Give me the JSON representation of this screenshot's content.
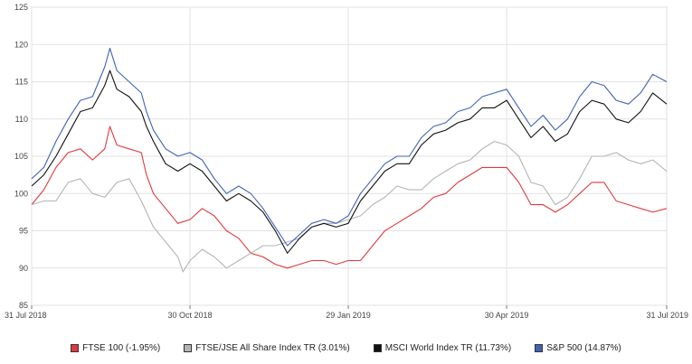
{
  "chart_data": {
    "type": "line",
    "title": "",
    "xlabel": "",
    "ylabel": "",
    "ylim": [
      85,
      125
    ],
    "yticks": [
      85,
      90,
      95,
      100,
      105,
      110,
      115,
      120,
      125
    ],
    "xticks": [
      {
        "label": "31 Jul 2018",
        "date": "2018-07-31"
      },
      {
        "label": "30 Oct 2018",
        "date": "2018-10-30"
      },
      {
        "label": "29 Jan 2019",
        "date": "2019-01-29"
      },
      {
        "label": "30 Apr 2019",
        "date": "2019-04-30"
      },
      {
        "label": "31 Jul 2019",
        "date": "2019-07-31"
      }
    ],
    "xlim": [
      "2018-07-31",
      "2019-07-31"
    ],
    "grid": true,
    "legend_position": "bottom",
    "series": [
      {
        "name": "FTSE 100 (-1.95%)",
        "color": "#e0393e",
        "points": [
          [
            "2018-07-31",
            98.5
          ],
          [
            "2018-08-07",
            100.5
          ],
          [
            "2018-08-14",
            103.5
          ],
          [
            "2018-08-21",
            105.5
          ],
          [
            "2018-08-28",
            106
          ],
          [
            "2018-09-04",
            104.5
          ],
          [
            "2018-09-11",
            106
          ],
          [
            "2018-09-14",
            109
          ],
          [
            "2018-09-18",
            106.5
          ],
          [
            "2018-09-25",
            106
          ],
          [
            "2018-10-02",
            105.5
          ],
          [
            "2018-10-05",
            102.5
          ],
          [
            "2018-10-09",
            100
          ],
          [
            "2018-10-16",
            98
          ],
          [
            "2018-10-23",
            96
          ],
          [
            "2018-10-30",
            96.5
          ],
          [
            "2018-11-06",
            98
          ],
          [
            "2018-11-13",
            97
          ],
          [
            "2018-11-20",
            95
          ],
          [
            "2018-11-27",
            94
          ],
          [
            "2018-12-04",
            92
          ],
          [
            "2018-12-11",
            91.5
          ],
          [
            "2018-12-18",
            90.5
          ],
          [
            "2018-12-25",
            90
          ],
          [
            "2019-01-01",
            90.5
          ],
          [
            "2019-01-08",
            91
          ],
          [
            "2019-01-15",
            91
          ],
          [
            "2019-01-22",
            90.5
          ],
          [
            "2019-01-29",
            91
          ],
          [
            "2019-02-05",
            91
          ],
          [
            "2019-02-12",
            93
          ],
          [
            "2019-02-19",
            95
          ],
          [
            "2019-02-26",
            96
          ],
          [
            "2019-03-05",
            97
          ],
          [
            "2019-03-12",
            98
          ],
          [
            "2019-03-19",
            99.5
          ],
          [
            "2019-03-26",
            100
          ],
          [
            "2019-04-02",
            101.5
          ],
          [
            "2019-04-09",
            102.5
          ],
          [
            "2019-04-16",
            103.5
          ],
          [
            "2019-04-23",
            103.5
          ],
          [
            "2019-04-30",
            103.5
          ],
          [
            "2019-05-07",
            101.5
          ],
          [
            "2019-05-14",
            98.5
          ],
          [
            "2019-05-21",
            98.5
          ],
          [
            "2019-05-28",
            97.5
          ],
          [
            "2019-06-04",
            98.5
          ],
          [
            "2019-06-11",
            100
          ],
          [
            "2019-06-18",
            101.5
          ],
          [
            "2019-06-25",
            101.5
          ],
          [
            "2019-07-02",
            99
          ],
          [
            "2019-07-09",
            98.5
          ],
          [
            "2019-07-16",
            98
          ],
          [
            "2019-07-23",
            97.5
          ],
          [
            "2019-07-31",
            98
          ]
        ]
      },
      {
        "name": "FTSE/JSE All Share Index TR (3.01%)",
        "color": "#b4b4b4",
        "points": [
          [
            "2018-07-31",
            98.5
          ],
          [
            "2018-08-07",
            99
          ],
          [
            "2018-08-14",
            99
          ],
          [
            "2018-08-21",
            101.5
          ],
          [
            "2018-08-28",
            102
          ],
          [
            "2018-09-04",
            100
          ],
          [
            "2018-09-11",
            99.5
          ],
          [
            "2018-09-18",
            101.5
          ],
          [
            "2018-09-25",
            102
          ],
          [
            "2018-10-02",
            99
          ],
          [
            "2018-10-09",
            95.5
          ],
          [
            "2018-10-16",
            93.5
          ],
          [
            "2018-10-23",
            91.5
          ],
          [
            "2018-10-26",
            89.5
          ],
          [
            "2018-10-30",
            91
          ],
          [
            "2018-11-06",
            92.5
          ],
          [
            "2018-11-13",
            91.5
          ],
          [
            "2018-11-20",
            90
          ],
          [
            "2018-11-27",
            91
          ],
          [
            "2018-12-04",
            92
          ],
          [
            "2018-12-11",
            93
          ],
          [
            "2018-12-18",
            93
          ],
          [
            "2018-12-25",
            93.5
          ],
          [
            "2019-01-01",
            94
          ],
          [
            "2019-01-08",
            95.5
          ],
          [
            "2019-01-15",
            96
          ],
          [
            "2019-01-22",
            96
          ],
          [
            "2019-01-29",
            96.5
          ],
          [
            "2019-02-05",
            97
          ],
          [
            "2019-02-12",
            98.5
          ],
          [
            "2019-02-19",
            99.5
          ],
          [
            "2019-02-26",
            101
          ],
          [
            "2019-03-05",
            100.5
          ],
          [
            "2019-03-12",
            100.5
          ],
          [
            "2019-03-19",
            102
          ],
          [
            "2019-03-26",
            103
          ],
          [
            "2019-04-02",
            104
          ],
          [
            "2019-04-09",
            104.5
          ],
          [
            "2019-04-16",
            106
          ],
          [
            "2019-04-23",
            107
          ],
          [
            "2019-04-30",
            106.5
          ],
          [
            "2019-05-07",
            105
          ],
          [
            "2019-05-14",
            101.5
          ],
          [
            "2019-05-21",
            101
          ],
          [
            "2019-05-28",
            98.5
          ],
          [
            "2019-06-04",
            99.5
          ],
          [
            "2019-06-11",
            102
          ],
          [
            "2019-06-18",
            105
          ],
          [
            "2019-06-25",
            105
          ],
          [
            "2019-07-02",
            105.5
          ],
          [
            "2019-07-09",
            104.5
          ],
          [
            "2019-07-16",
            104
          ],
          [
            "2019-07-23",
            104.5
          ],
          [
            "2019-07-31",
            103
          ]
        ]
      },
      {
        "name": "MSCI World Index TR (11.73%)",
        "color": "#111111",
        "points": [
          [
            "2018-07-31",
            101
          ],
          [
            "2018-08-07",
            102.5
          ],
          [
            "2018-08-14",
            105
          ],
          [
            "2018-08-21",
            108
          ],
          [
            "2018-08-28",
            111
          ],
          [
            "2018-09-04",
            111.5
          ],
          [
            "2018-09-11",
            114.5
          ],
          [
            "2018-09-14",
            116.5
          ],
          [
            "2018-09-18",
            114
          ],
          [
            "2018-09-25",
            113
          ],
          [
            "2018-10-02",
            111
          ],
          [
            "2018-10-05",
            109
          ],
          [
            "2018-10-09",
            107
          ],
          [
            "2018-10-16",
            104
          ],
          [
            "2018-10-23",
            103
          ],
          [
            "2018-10-30",
            104
          ],
          [
            "2018-11-06",
            103
          ],
          [
            "2018-11-13",
            101
          ],
          [
            "2018-11-20",
            99
          ],
          [
            "2018-11-27",
            100
          ],
          [
            "2018-12-04",
            99
          ],
          [
            "2018-12-11",
            97.5
          ],
          [
            "2018-12-18",
            95
          ],
          [
            "2018-12-25",
            92
          ],
          [
            "2019-01-01",
            94
          ],
          [
            "2019-01-08",
            95.5
          ],
          [
            "2019-01-15",
            96
          ],
          [
            "2019-01-22",
            95.5
          ],
          [
            "2019-01-29",
            96
          ],
          [
            "2019-02-05",
            99
          ],
          [
            "2019-02-12",
            101
          ],
          [
            "2019-02-19",
            103
          ],
          [
            "2019-02-26",
            104
          ],
          [
            "2019-03-05",
            104
          ],
          [
            "2019-03-12",
            106.5
          ],
          [
            "2019-03-19",
            108
          ],
          [
            "2019-03-26",
            108.5
          ],
          [
            "2019-04-02",
            109.5
          ],
          [
            "2019-04-09",
            110
          ],
          [
            "2019-04-16",
            111.5
          ],
          [
            "2019-04-23",
            111.5
          ],
          [
            "2019-04-30",
            112.5
          ],
          [
            "2019-05-07",
            110
          ],
          [
            "2019-05-14",
            107.5
          ],
          [
            "2019-05-21",
            109
          ],
          [
            "2019-05-28",
            107
          ],
          [
            "2019-06-04",
            108
          ],
          [
            "2019-06-11",
            111
          ],
          [
            "2019-06-18",
            112.5
          ],
          [
            "2019-06-25",
            112
          ],
          [
            "2019-07-02",
            110
          ],
          [
            "2019-07-09",
            109.5
          ],
          [
            "2019-07-16",
            111
          ],
          [
            "2019-07-23",
            113.5
          ],
          [
            "2019-07-31",
            112
          ]
        ]
      },
      {
        "name": "S&P 500 (14.87%)",
        "color": "#3f63b5",
        "points": [
          [
            "2018-07-31",
            102
          ],
          [
            "2018-08-07",
            103.5
          ],
          [
            "2018-08-14",
            107
          ],
          [
            "2018-08-21",
            110
          ],
          [
            "2018-08-28",
            112.5
          ],
          [
            "2018-09-04",
            113
          ],
          [
            "2018-09-11",
            117
          ],
          [
            "2018-09-14",
            119.5
          ],
          [
            "2018-09-18",
            116.5
          ],
          [
            "2018-09-25",
            115
          ],
          [
            "2018-10-02",
            113.5
          ],
          [
            "2018-10-05",
            111
          ],
          [
            "2018-10-09",
            108.5
          ],
          [
            "2018-10-16",
            106
          ],
          [
            "2018-10-23",
            105
          ],
          [
            "2018-10-30",
            105.5
          ],
          [
            "2018-11-06",
            104.5
          ],
          [
            "2018-11-13",
            102
          ],
          [
            "2018-11-20",
            100
          ],
          [
            "2018-11-27",
            101
          ],
          [
            "2018-12-04",
            100
          ],
          [
            "2018-12-11",
            98
          ],
          [
            "2018-12-18",
            95.5
          ],
          [
            "2018-12-25",
            93
          ],
          [
            "2019-01-01",
            94.5
          ],
          [
            "2019-01-08",
            96
          ],
          [
            "2019-01-15",
            96.5
          ],
          [
            "2019-01-22",
            96
          ],
          [
            "2019-01-29",
            97
          ],
          [
            "2019-02-05",
            100
          ],
          [
            "2019-02-12",
            102
          ],
          [
            "2019-02-19",
            104
          ],
          [
            "2019-02-26",
            105
          ],
          [
            "2019-03-05",
            105
          ],
          [
            "2019-03-12",
            107.5
          ],
          [
            "2019-03-19",
            109
          ],
          [
            "2019-03-26",
            109.5
          ],
          [
            "2019-04-02",
            111
          ],
          [
            "2019-04-09",
            111.5
          ],
          [
            "2019-04-16",
            113
          ],
          [
            "2019-04-23",
            113.5
          ],
          [
            "2019-04-30",
            114
          ],
          [
            "2019-05-07",
            111.5
          ],
          [
            "2019-05-14",
            109
          ],
          [
            "2019-05-21",
            110.5
          ],
          [
            "2019-05-28",
            108.5
          ],
          [
            "2019-06-04",
            110
          ],
          [
            "2019-06-11",
            113
          ],
          [
            "2019-06-18",
            115
          ],
          [
            "2019-06-25",
            114.5
          ],
          [
            "2019-07-02",
            112.5
          ],
          [
            "2019-07-09",
            112
          ],
          [
            "2019-07-16",
            113.5
          ],
          [
            "2019-07-23",
            116
          ],
          [
            "2019-07-31",
            115
          ]
        ]
      }
    ]
  }
}
